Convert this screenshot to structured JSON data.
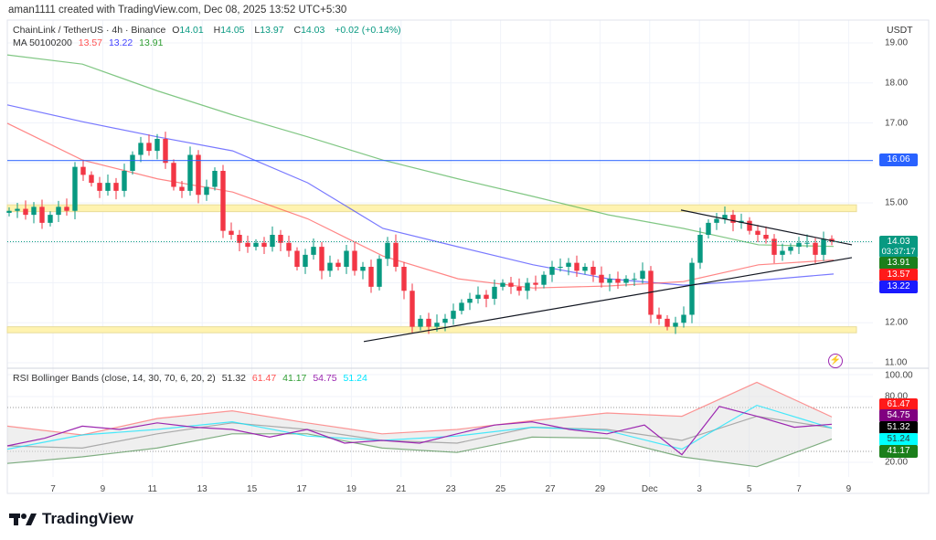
{
  "attribution": "aman1111 created with TradingView.com, Dec 08, 2025 13:52 UTC+5:30",
  "legend": {
    "symbol": "ChainLink / TetherUS · 4h · Binance",
    "o_label": "O",
    "o": "14.01",
    "h_label": "H",
    "h": "14.05",
    "l_label": "L",
    "l": "13.97",
    "c_label": "C",
    "c": "14.03",
    "change": "+0.02 (+0.14%)",
    "ma_title": "MA 50100200",
    "ma50": "13.57",
    "ma100": "13.22",
    "ma200": "13.91"
  },
  "rsi_legend": {
    "title": "RSI Bollinger Bands (close, 14, 30, 70, 6, 20, 2)",
    "v1": "51.32",
    "v2": "61.47",
    "v3": "41.17",
    "v4": "54.75",
    "v5": "51.24"
  },
  "currency": "USDT",
  "price_ticks": [
    "19.00",
    "18.00",
    "17.00",
    "15.00",
    "12.00",
    "11.00"
  ],
  "rsi_ticks": [
    "100.00",
    "80.00",
    "20.00"
  ],
  "date_ticks": [
    "7",
    "9",
    "11",
    "13",
    "15",
    "17",
    "19",
    "21",
    "23",
    "25",
    "27",
    "29",
    "Dec",
    "3",
    "5",
    "7",
    "9"
  ],
  "price_labels": {
    "last": "14.03",
    "countdown": "03:37:17",
    "ma200": "13.91",
    "ma50": "13.57",
    "ma100": "13.22",
    "hline": "16.06"
  },
  "rsi_labels": {
    "upper": "61.47",
    "rsi": "54.75",
    "basis": "51.32",
    "ma": "51.24",
    "lower": "41.17"
  },
  "brand": "TradingView",
  "colors": {
    "up": "#089981",
    "down": "#f23645",
    "ma50": "#ff5252",
    "ma100": "#4040ff",
    "ma200": "#4caf50",
    "hline": "#2962ff",
    "zone": "#fff3b0",
    "rsi": "#9c27b0",
    "rsi_ma": "#00e5ff",
    "upper": "#ff5252",
    "lower": "#2e7d32",
    "basis": "#999999"
  },
  "chart_data": [
    {
      "type": "candlestick",
      "title": "ChainLink / TetherUS · 4h · Binance",
      "ylim": [
        11,
        19
      ],
      "closes": [
        14.8,
        14.85,
        14.7,
        14.9,
        14.5,
        14.7,
        14.9,
        14.8,
        15.9,
        15.7,
        15.5,
        15.3,
        15.5,
        15.3,
        15.8,
        16.2,
        16.5,
        16.3,
        16.6,
        16.0,
        15.4,
        15.3,
        16.2,
        15.2,
        15.4,
        15.8,
        14.3,
        14.2,
        14.0,
        13.9,
        14.0,
        13.9,
        14.2,
        14.0,
        13.8,
        13.4,
        13.7,
        13.9,
        13.3,
        13.5,
        13.4,
        13.8,
        13.3,
        13.4,
        12.9,
        13.6,
        14.0,
        13.4,
        12.8,
        11.9,
        12.1,
        11.9,
        12.0,
        12.1,
        12.3,
        12.5,
        12.6,
        12.7,
        12.6,
        12.9,
        13.0,
        12.9,
        12.8,
        13.0,
        12.95,
        13.2,
        13.4,
        13.4,
        13.5,
        13.3,
        13.4,
        13.2,
        13.0,
        13.1,
        13.0,
        13.1,
        13.1,
        13.3,
        12.2,
        12.1,
        11.9,
        12.0,
        12.2,
        13.5,
        14.2,
        14.5,
        14.6,
        14.7,
        14.5,
        14.55,
        14.3,
        14.2,
        14.1,
        13.7,
        13.8,
        13.9,
        14.0,
        14.0,
        13.7,
        14.1,
        14.03
      ],
      "ma50": [
        16.99,
        16.07,
        15.6,
        15.27,
        14.6,
        13.67,
        13.1,
        12.87,
        12.92,
        13.03,
        13.45,
        13.57
      ],
      "ma100": [
        17.45,
        17.03,
        16.65,
        16.3,
        15.5,
        14.36,
        13.9,
        13.45,
        13.1,
        12.94,
        13.06,
        13.22
      ],
      "ma200": [
        18.7,
        18.47,
        17.8,
        17.2,
        16.65,
        16.07,
        15.6,
        15.16,
        14.7,
        14.36,
        13.95,
        13.91
      ],
      "horizontal_line": 16.06,
      "zones": [
        [
          14.78,
          14.95
        ],
        [
          11.75,
          11.9
        ]
      ],
      "trendline_support": [
        11.53,
        13.63
      ],
      "trendline_resistance": [
        14.82,
        13.95
      ]
    },
    {
      "type": "line",
      "title": "RSI Bollinger Bands (close, 14, 30, 70, 6, 20, 2)",
      "ylim": [
        0,
        100
      ],
      "levels": [
        70,
        30
      ],
      "rsi": [
        35,
        42,
        53,
        50,
        56,
        52,
        50,
        43,
        50,
        37.5,
        40,
        37.5,
        46,
        54,
        57,
        50,
        46,
        54,
        27,
        71,
        62,
        52,
        54.75
      ],
      "rsi_ma": [
        32,
        45,
        50,
        57,
        44,
        40,
        44,
        52,
        49,
        32,
        72,
        51.24
      ],
      "basis": [
        35,
        33,
        46,
        56,
        50,
        40,
        37.5,
        52,
        50,
        40,
        62,
        51.32
      ],
      "upper": [
        53,
        45,
        60,
        67,
        56,
        46,
        50,
        58,
        65,
        62,
        93,
        61.47
      ],
      "lower": [
        19,
        25,
        33,
        46,
        46,
        33,
        29,
        43,
        42,
        25,
        16,
        41.17
      ]
    }
  ]
}
